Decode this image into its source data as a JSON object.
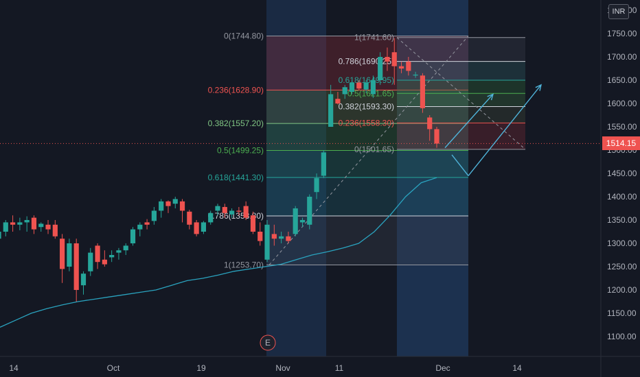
{
  "currency": "INR",
  "current_price": "1514.15",
  "earnings_marker": "E",
  "colors": {
    "background": "#141823",
    "up": "#26a69a",
    "down": "#ef5350",
    "ma": "#2aa3bf",
    "zone_blue": "#1f3a5f"
  },
  "chart_data": {
    "type": "candlestick",
    "y_axis_ticks": [
      "1100.00",
      "1150.00",
      "1200.00",
      "1250.00",
      "1300.00",
      "1350.00",
      "1400.00",
      "1450.00",
      "1500.00",
      "1550.00",
      "1600.00",
      "1650.00",
      "1700.00",
      "1750.00",
      "1800.00"
    ],
    "x_axis_labels": [
      "14",
      "Oct",
      "19",
      "Nov",
      "11",
      "Dec",
      "14"
    ],
    "ylim": [
      1060,
      1810
    ],
    "candles": [
      {
        "o": 1310,
        "h": 1335,
        "l": 1262,
        "c": 1325
      },
      {
        "o": 1325,
        "h": 1350,
        "l": 1315,
        "c": 1345
      },
      {
        "o": 1345,
        "h": 1360,
        "l": 1325,
        "c": 1340
      },
      {
        "o": 1340,
        "h": 1355,
        "l": 1328,
        "c": 1345
      },
      {
        "o": 1345,
        "h": 1358,
        "l": 1325,
        "c": 1350
      },
      {
        "o": 1355,
        "h": 1360,
        "l": 1320,
        "c": 1330
      },
      {
        "o": 1335,
        "h": 1345,
        "l": 1325,
        "c": 1342
      },
      {
        "o": 1340,
        "h": 1350,
        "l": 1320,
        "c": 1330
      },
      {
        "o": 1340,
        "h": 1350,
        "l": 1310,
        "c": 1315
      },
      {
        "o": 1310,
        "h": 1320,
        "l": 1215,
        "c": 1245
      },
      {
        "o": 1250,
        "h": 1310,
        "l": 1240,
        "c": 1300
      },
      {
        "o": 1300,
        "h": 1310,
        "l": 1175,
        "c": 1200
      },
      {
        "o": 1210,
        "h": 1240,
        "l": 1190,
        "c": 1235
      },
      {
        "o": 1240,
        "h": 1290,
        "l": 1230,
        "c": 1280
      },
      {
        "o": 1295,
        "h": 1300,
        "l": 1245,
        "c": 1260
      },
      {
        "o": 1265,
        "h": 1285,
        "l": 1250,
        "c": 1255
      },
      {
        "o": 1270,
        "h": 1285,
        "l": 1260,
        "c": 1275
      },
      {
        "o": 1280,
        "h": 1290,
        "l": 1265,
        "c": 1285
      },
      {
        "o": 1285,
        "h": 1300,
        "l": 1275,
        "c": 1295
      },
      {
        "o": 1300,
        "h": 1335,
        "l": 1295,
        "c": 1330
      },
      {
        "o": 1330,
        "h": 1345,
        "l": 1315,
        "c": 1340
      },
      {
        "o": 1345,
        "h": 1352,
        "l": 1330,
        "c": 1340
      },
      {
        "o": 1348,
        "h": 1378,
        "l": 1340,
        "c": 1370
      },
      {
        "o": 1370,
        "h": 1395,
        "l": 1355,
        "c": 1390
      },
      {
        "o": 1390,
        "h": 1392,
        "l": 1365,
        "c": 1380
      },
      {
        "o": 1385,
        "h": 1400,
        "l": 1375,
        "c": 1395
      },
      {
        "o": 1390,
        "h": 1395,
        "l": 1345,
        "c": 1370
      },
      {
        "o": 1368,
        "h": 1372,
        "l": 1330,
        "c": 1340
      },
      {
        "o": 1345,
        "h": 1350,
        "l": 1315,
        "c": 1320
      },
      {
        "o": 1325,
        "h": 1348,
        "l": 1320,
        "c": 1345
      },
      {
        "o": 1345,
        "h": 1370,
        "l": 1340,
        "c": 1365
      },
      {
        "o": 1370,
        "h": 1385,
        "l": 1360,
        "c": 1380
      },
      {
        "o": 1378,
        "h": 1385,
        "l": 1355,
        "c": 1365
      },
      {
        "o": 1362,
        "h": 1375,
        "l": 1355,
        "c": 1370
      },
      {
        "o": 1370,
        "h": 1378,
        "l": 1360,
        "c": 1368
      },
      {
        "o": 1380,
        "h": 1390,
        "l": 1350,
        "c": 1355
      },
      {
        "o": 1360,
        "h": 1368,
        "l": 1320,
        "c": 1325
      },
      {
        "o": 1325,
        "h": 1345,
        "l": 1295,
        "c": 1305
      },
      {
        "o": 1265,
        "h": 1350,
        "l": 1260,
        "c": 1340
      },
      {
        "o": 1320,
        "h": 1340,
        "l": 1295,
        "c": 1310
      },
      {
        "o": 1310,
        "h": 1325,
        "l": 1300,
        "c": 1315
      },
      {
        "o": 1315,
        "h": 1325,
        "l": 1300,
        "c": 1305
      },
      {
        "o": 1320,
        "h": 1380,
        "l": 1315,
        "c": 1375
      },
      {
        "o": 1345,
        "h": 1355,
        "l": 1335,
        "c": 1350
      },
      {
        "o": 1340,
        "h": 1405,
        "l": 1330,
        "c": 1400
      },
      {
        "o": 1410,
        "h": 1450,
        "l": 1395,
        "c": 1440
      },
      {
        "o": 1445,
        "h": 1500,
        "l": 1440,
        "c": 1495
      },
      {
        "o": 1550,
        "h": 1640,
        "l": 1550,
        "c": 1620
      },
      {
        "o": 1610,
        "h": 1625,
        "l": 1598,
        "c": 1600
      },
      {
        "o": 1620,
        "h": 1640,
        "l": 1610,
        "c": 1635
      },
      {
        "o": 1625,
        "h": 1650,
        "l": 1620,
        "c": 1645
      },
      {
        "o": 1645,
        "h": 1650,
        "l": 1628,
        "c": 1632
      },
      {
        "o": 1630,
        "h": 1650,
        "l": 1622,
        "c": 1645
      },
      {
        "o": 1620,
        "h": 1660,
        "l": 1612,
        "c": 1650
      },
      {
        "o": 1650,
        "h": 1710,
        "l": 1640,
        "c": 1700
      },
      {
        "o": 1700,
        "h": 1720,
        "l": 1670,
        "c": 1690
      },
      {
        "o": 1710,
        "h": 1740,
        "l": 1640,
        "c": 1680
      },
      {
        "o": 1680,
        "h": 1690,
        "l": 1665,
        "c": 1675
      },
      {
        "o": 1690,
        "h": 1700,
        "l": 1660,
        "c": 1670
      },
      {
        "o": 1660,
        "h": 1668,
        "l": 1655,
        "c": 1662
      },
      {
        "o": 1660,
        "h": 1665,
        "l": 1580,
        "c": 1590
      },
      {
        "o": 1570,
        "h": 1575,
        "l": 1520,
        "c": 1545
      },
      {
        "o": 1545,
        "h": 1550,
        "l": 1505,
        "c": 1514
      }
    ],
    "moving_average": [
      1120,
      1135,
      1150,
      1160,
      1168,
      1175,
      1180,
      1185,
      1190,
      1195,
      1200,
      1210,
      1220,
      1225,
      1232,
      1240,
      1245,
      1250,
      1255,
      1265,
      1275,
      1282,
      1290,
      1300,
      1325,
      1360,
      1400,
      1430,
      1441
    ],
    "fib_left": {
      "levels": [
        {
          "ratio": "0",
          "price": 1744.8,
          "label": "0(1744.80)",
          "color": "#9598a1"
        },
        {
          "ratio": "0.236",
          "price": 1628.9,
          "label": "0.236(1628.90)",
          "color": "#ef5350"
        },
        {
          "ratio": "0.382",
          "price": 1557.2,
          "label": "0.382(1557.20)",
          "color": "#81c784"
        },
        {
          "ratio": "0.5",
          "price": 1499.25,
          "label": "0.5(1499.25)",
          "color": "#4caf50"
        },
        {
          "ratio": "0.618",
          "price": 1441.3,
          "label": "0.618(1441.30)",
          "color": "#26a69a"
        },
        {
          "ratio": "0.786",
          "price": 1358.8,
          "label": "0.786(1358.80)",
          "color": "#d1d4dc"
        },
        {
          "ratio": "1",
          "price": 1253.7,
          "label": "1(1253.70)",
          "color": "#9598a1"
        }
      ]
    },
    "fib_right": {
      "levels": [
        {
          "ratio": "1",
          "price": 1741.6,
          "label": "1(1741.60)",
          "color": "#9598a1"
        },
        {
          "ratio": "0.786",
          "price": 1690.25,
          "label": "0.786(1690.25)",
          "color": "#d1d4dc"
        },
        {
          "ratio": "0.618",
          "price": 1649.95,
          "label": "0.618(1649.95)",
          "color": "#26a69a"
        },
        {
          "ratio": "0.5",
          "price": 1621.65,
          "label": "0.5(1621.65)",
          "color": "#4caf50"
        },
        {
          "ratio": "0.382",
          "price": 1593.3,
          "label": "0.382(1593.30)",
          "color": "#d1d4dc"
        },
        {
          "ratio": "0.236",
          "price": 1558.3,
          "label": "0.236(1558.30)",
          "color": "#ef5350"
        },
        {
          "ratio": "0",
          "price": 1501.65,
          "label": "0(1501.65)",
          "color": "#9598a1"
        }
      ]
    },
    "projection_arrows": [
      {
        "from": 1505,
        "to": 1620
      },
      {
        "from": 1445,
        "to": 1640
      }
    ],
    "projection_dip": {
      "from": 1490,
      "to": 1445
    }
  }
}
